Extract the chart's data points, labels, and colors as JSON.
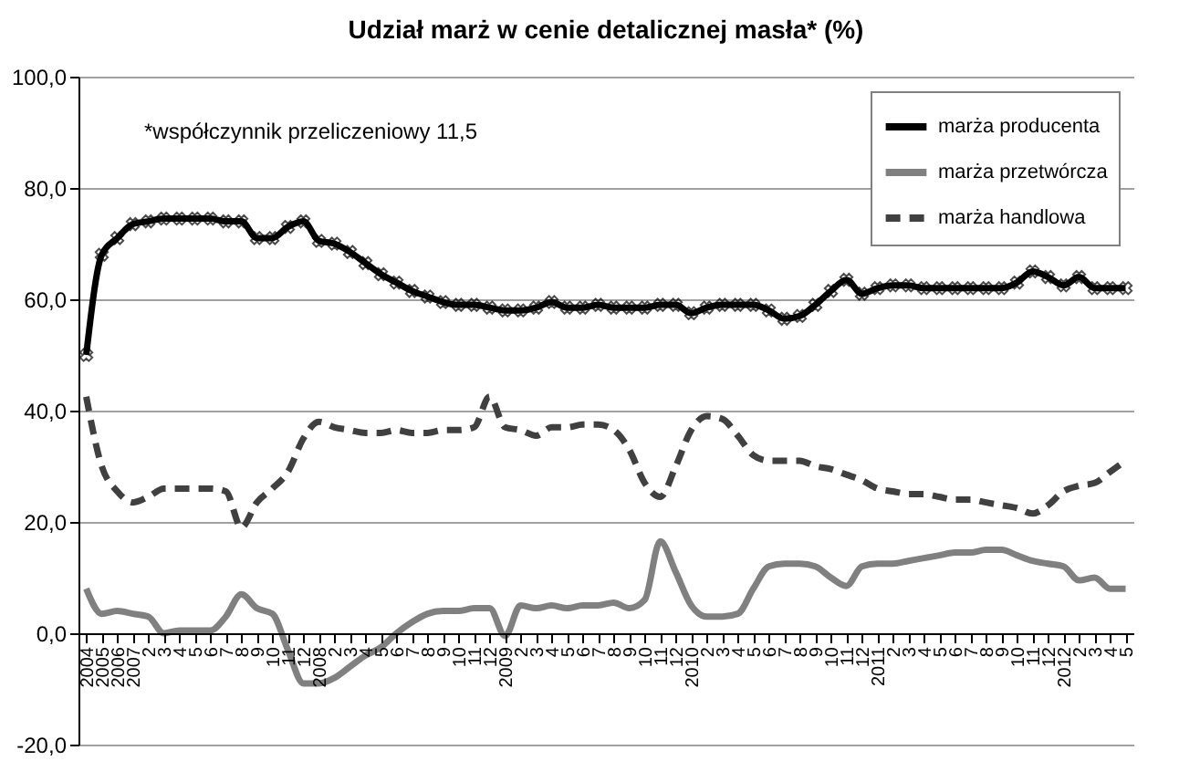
{
  "chart_data": {
    "type": "line",
    "title": "Udział marż w cenie detalicznej masła* (%)",
    "annotations": [
      "*współczynnik przeliczeniowy 11,5"
    ],
    "categories": [
      "2004",
      "2005",
      "2006",
      "2007",
      "2",
      "3",
      "4",
      "5",
      "6",
      "7",
      "8",
      "9",
      "10",
      "11",
      "12",
      "2008",
      "2",
      "3",
      "4",
      "5",
      "6",
      "7",
      "8",
      "9",
      "10",
      "11",
      "12",
      "2009",
      "2",
      "3",
      "4",
      "5",
      "6",
      "7",
      "8",
      "9",
      "10",
      "11",
      "12",
      "2010",
      "2",
      "3",
      "4",
      "5",
      "6",
      "7",
      "8",
      "9",
      "10",
      "11",
      "12",
      "2011",
      "2",
      "3",
      "4",
      "5",
      "6",
      "7",
      "8",
      "9",
      "10",
      "11",
      "12",
      "2012",
      "2",
      "3",
      "4",
      "5"
    ],
    "series": [
      {
        "name": "marża producenta",
        "color": "#000000",
        "marker": "cross",
        "line_style": "solid",
        "values": [
          50,
          68,
          71,
          73.5,
          74,
          74.5,
          74.5,
          74.5,
          74.5,
          74,
          74,
          71,
          71,
          73,
          74,
          70.5,
          70,
          68.5,
          66.5,
          64.5,
          63,
          61.5,
          60.5,
          59.5,
          59,
          59,
          58.5,
          58,
          58,
          58.5,
          59.5,
          58.5,
          58.5,
          59,
          58.5,
          58.5,
          58.5,
          59,
          59,
          57.5,
          58.5,
          59,
          59,
          59,
          58,
          56.5,
          57,
          59,
          61.5,
          63.5,
          61,
          62,
          62.5,
          62.5,
          62,
          62,
          62,
          62,
          62,
          62,
          63,
          65,
          64,
          62.5,
          64,
          62,
          62,
          62
        ]
      },
      {
        "name": "marża przetwórcza",
        "color": "#808080",
        "marker": "none",
        "line_style": "solid",
        "values": [
          8,
          3.5,
          4,
          3.5,
          3,
          0,
          0.5,
          0.5,
          0.5,
          3,
          7,
          4.5,
          3.5,
          -3,
          -9,
          -9,
          -8,
          -6,
          -4,
          -2.5,
          0,
          2,
          3.5,
          4,
          4,
          4.5,
          4.5,
          -0.5,
          5,
          4.5,
          5,
          4.5,
          5,
          5,
          5.5,
          4.5,
          6,
          16.5,
          11,
          5,
          3,
          3,
          3.5,
          8,
          12,
          12.5,
          12.5,
          12,
          10,
          8.5,
          12,
          12.5,
          12.5,
          13,
          13.5,
          14,
          14.5,
          14.5,
          15,
          15,
          14,
          13,
          12.5,
          12,
          9.5,
          10,
          8,
          8
        ]
      },
      {
        "name": "marża handlowa",
        "color": "#404040",
        "marker": "none",
        "line_style": "dashed",
        "values": [
          42.5,
          30,
          25.5,
          23.5,
          24.5,
          26,
          26,
          26,
          26,
          25.5,
          19,
          23.5,
          26,
          29,
          35,
          38,
          37,
          36.5,
          36,
          36,
          36.5,
          36,
          36,
          36.5,
          36.5,
          37,
          42.5,
          37,
          36.5,
          35.5,
          37,
          37,
          37.5,
          37.5,
          36.5,
          33,
          27,
          24.5,
          30,
          36.5,
          39,
          38.5,
          35.5,
          32,
          31,
          31,
          31,
          30,
          29.5,
          28.5,
          27.5,
          26,
          25.5,
          25,
          25,
          24.5,
          24,
          24,
          23.5,
          23,
          22.5,
          21.5,
          23,
          25.5,
          26.5,
          27,
          29,
          31
        ]
      }
    ],
    "ylim": [
      -20,
      100
    ],
    "yticks": [
      {
        "value": -20,
        "label": "-20,0"
      },
      {
        "value": 0,
        "label": "0,0"
      },
      {
        "value": 20,
        "label": "20,0"
      },
      {
        "value": 40,
        "label": "40,0"
      },
      {
        "value": 60,
        "label": "60,0"
      },
      {
        "value": 80,
        "label": "80,0"
      },
      {
        "value": 100,
        "label": "100,0"
      }
    ],
    "grid": "y",
    "legend": "top right"
  }
}
